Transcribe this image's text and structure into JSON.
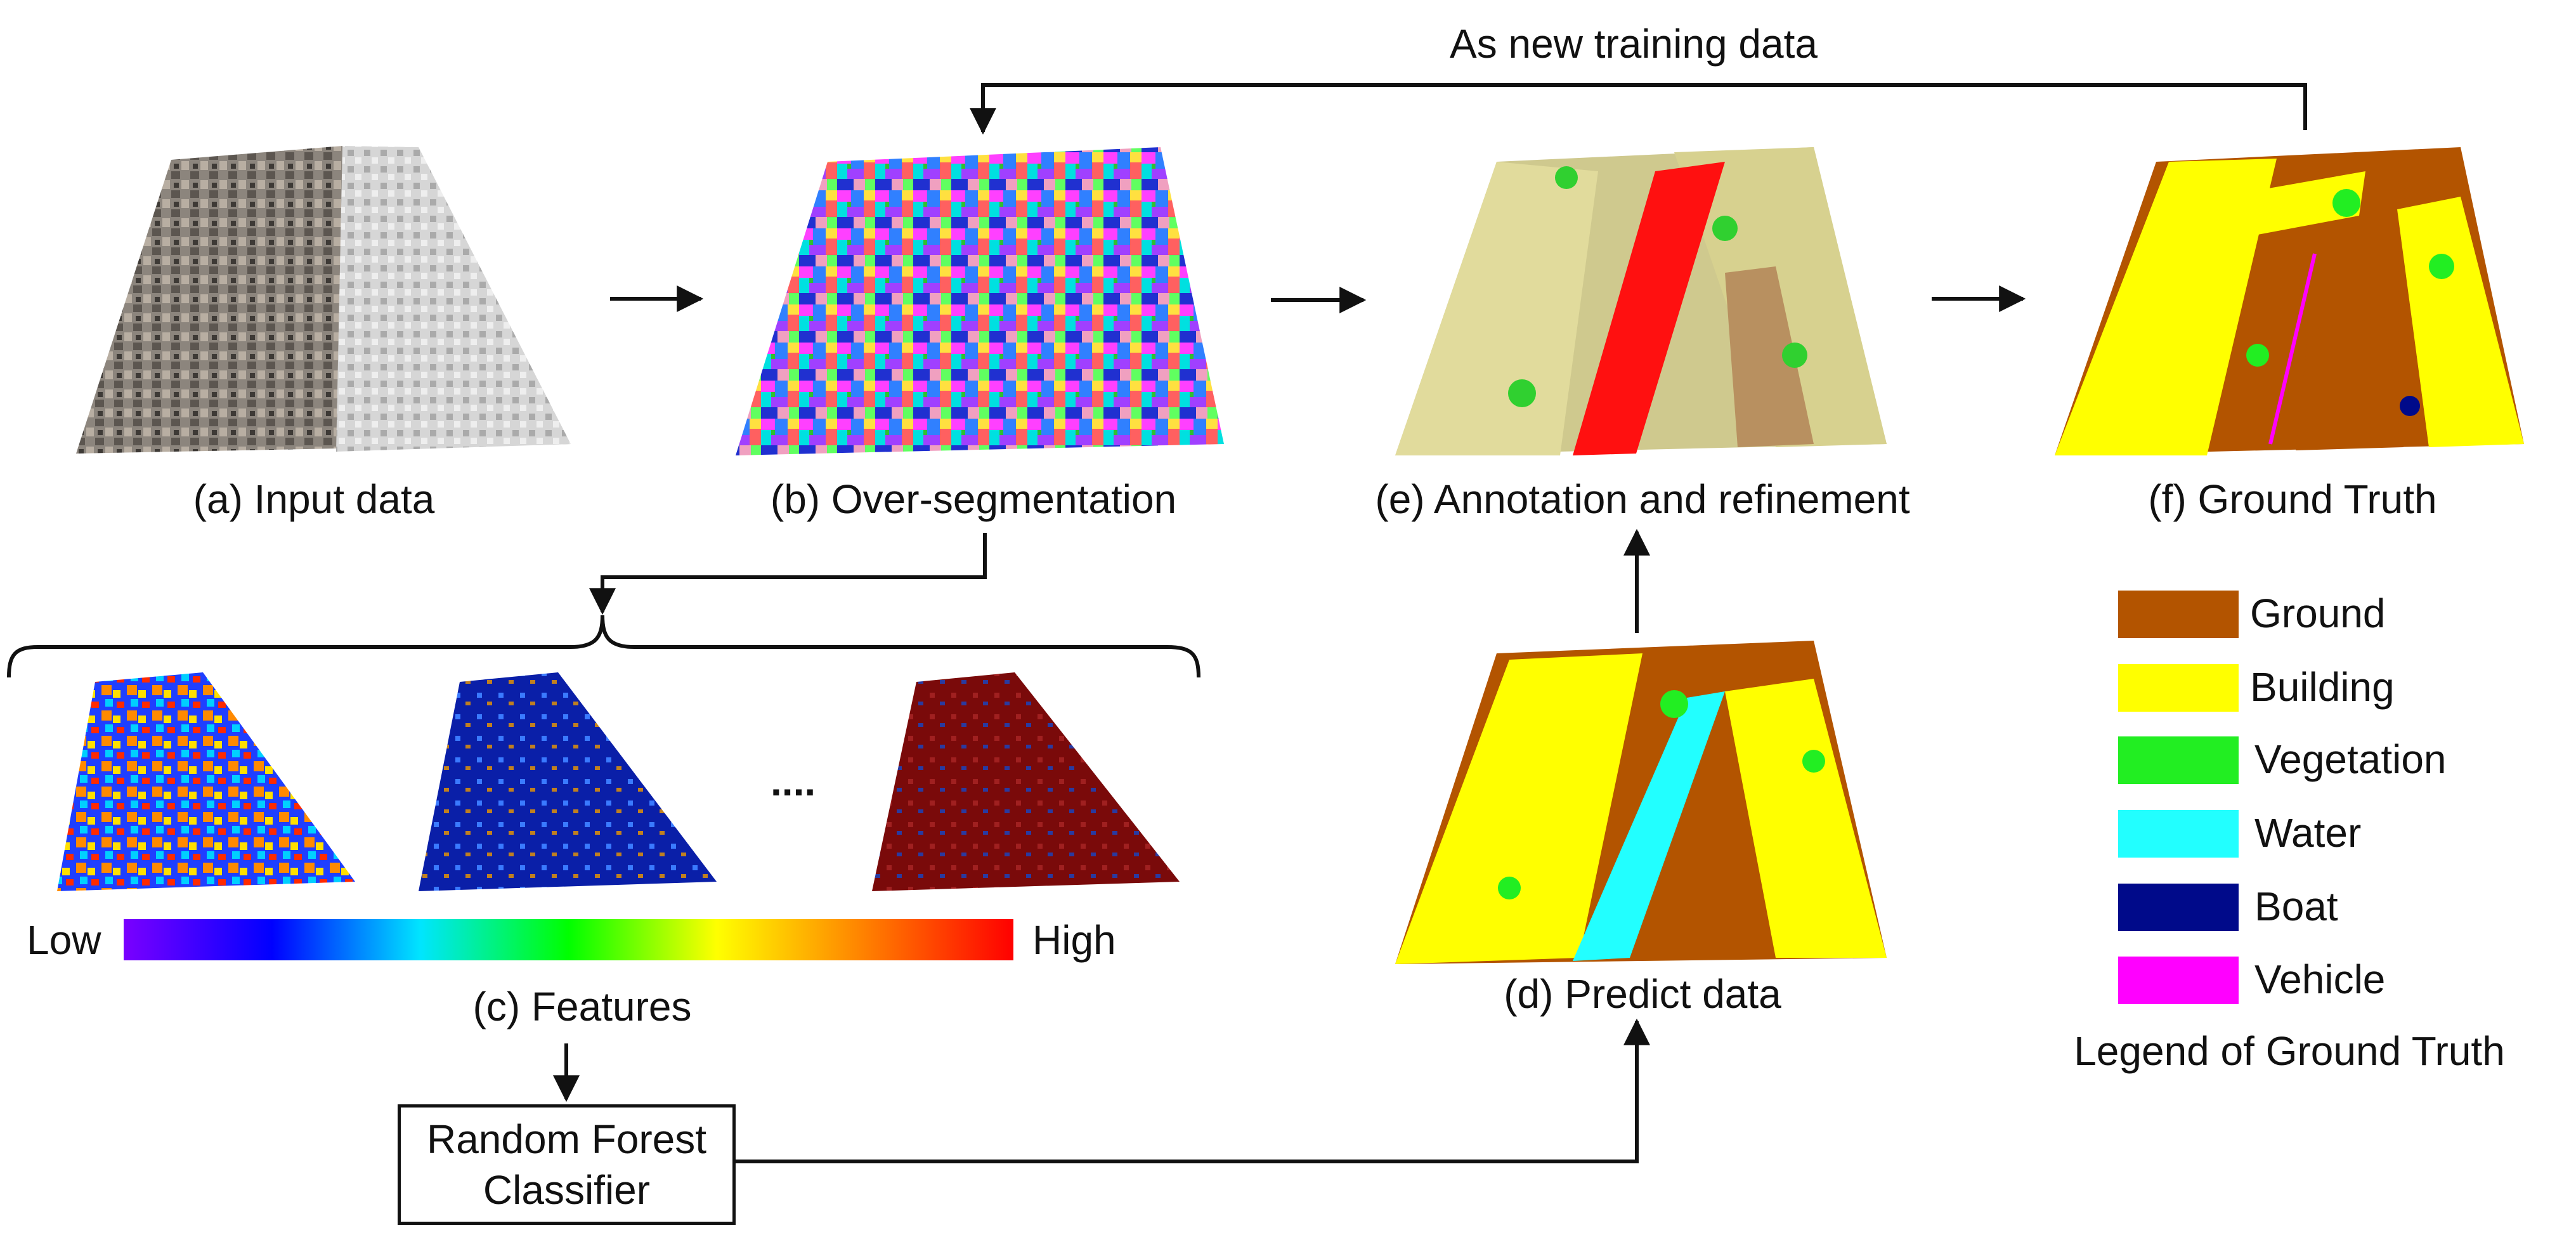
{
  "feedback_label": "As new training data",
  "captions": {
    "a": "(a)  Input data",
    "b": "(b) Over-segmentation",
    "e": "(e) Annotation and refinement",
    "f": "(f) Ground Truth",
    "c": "(c) Features",
    "d": "(d) Predict data"
  },
  "classifier": {
    "line1": "Random Forest",
    "line2": "Classifier"
  },
  "colorbar": {
    "low": "Low",
    "high": "High",
    "stops": [
      "#7a00ff",
      "#0000ff",
      "#00e5ff",
      "#00ff00",
      "#ffff00",
      "#ff8000",
      "#ff0000"
    ]
  },
  "ellipsis": "....",
  "legend": {
    "title": "Legend of Ground Truth",
    "items": [
      {
        "label": "Ground",
        "color": "#b35400"
      },
      {
        "label": "Building",
        "color": "#ffff00"
      },
      {
        "label": "Vegetation",
        "color": "#22ee22"
      },
      {
        "label": "Water",
        "color": "#22ffff"
      },
      {
        "label": "Boat",
        "color": "#000a8a"
      },
      {
        "label": "Vehicle",
        "color": "#ff00ff"
      }
    ]
  }
}
